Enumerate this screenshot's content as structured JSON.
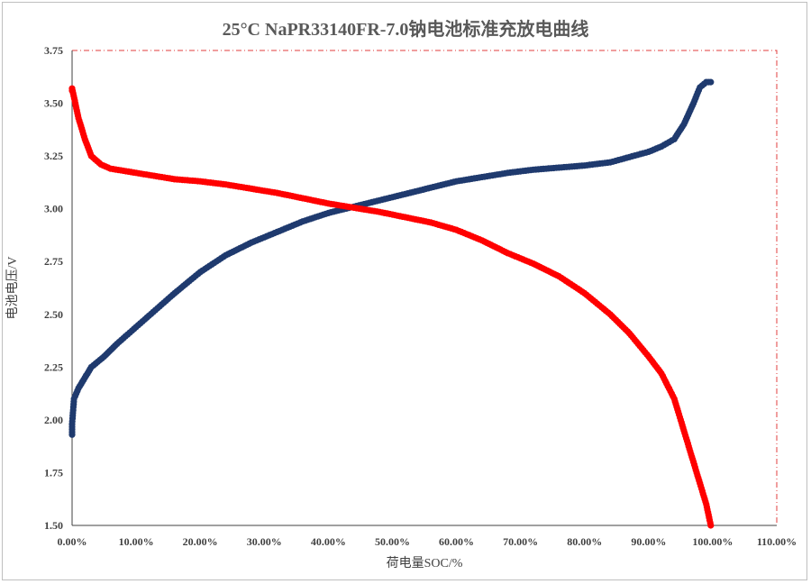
{
  "chart_data": {
    "type": "scatter",
    "title": "25°C NaPR33140FR-7.0钠电池标准充放电曲线",
    "xlabel": "荷电量SOC/%",
    "ylabel": "电池电压/V",
    "xlim": [
      0,
      1.1
    ],
    "ylim": [
      1.5,
      3.75
    ],
    "xticks": [
      0,
      0.1,
      0.2,
      0.3,
      0.4,
      0.5,
      0.6,
      0.7,
      0.8,
      0.9,
      1.0,
      1.1
    ],
    "xtick_labels": [
      "0.00%",
      "10.00%",
      "20.00%",
      "30.00%",
      "40.00%",
      "50.00%",
      "60.00%",
      "70.00%",
      "80.00%",
      "90.00%",
      "100.00%",
      "110.00%"
    ],
    "yticks": [
      1.5,
      1.75,
      2.0,
      2.25,
      2.5,
      2.75,
      3.0,
      3.25,
      3.5,
      3.75
    ],
    "ytick_labels": [
      "1.50",
      "1.75",
      "2.00",
      "2.25",
      "2.50",
      "2.75",
      "3.00",
      "3.25",
      "3.50",
      "3.75"
    ],
    "plot_border": "dash-dot",
    "series": [
      {
        "color": "#1f3a6e",
        "points": [
          [
            0.0,
            1.93
          ],
          [
            0.0,
            1.98
          ],
          [
            0.003,
            2.1
          ],
          [
            0.01,
            2.15
          ],
          [
            0.02,
            2.2
          ],
          [
            0.03,
            2.25
          ],
          [
            0.05,
            2.3
          ],
          [
            0.07,
            2.36
          ],
          [
            0.1,
            2.44
          ],
          [
            0.13,
            2.52
          ],
          [
            0.16,
            2.6
          ],
          [
            0.2,
            2.7
          ],
          [
            0.24,
            2.78
          ],
          [
            0.28,
            2.84
          ],
          [
            0.32,
            2.89
          ],
          [
            0.36,
            2.94
          ],
          [
            0.4,
            2.98
          ],
          [
            0.44,
            3.01
          ],
          [
            0.48,
            3.04
          ],
          [
            0.52,
            3.07
          ],
          [
            0.56,
            3.1
          ],
          [
            0.6,
            3.13
          ],
          [
            0.64,
            3.15
          ],
          [
            0.68,
            3.17
          ],
          [
            0.72,
            3.185
          ],
          [
            0.76,
            3.195
          ],
          [
            0.8,
            3.205
          ],
          [
            0.84,
            3.22
          ],
          [
            0.87,
            3.245
          ],
          [
            0.9,
            3.27
          ],
          [
            0.92,
            3.295
          ],
          [
            0.94,
            3.33
          ],
          [
            0.955,
            3.4
          ],
          [
            0.97,
            3.5
          ],
          [
            0.98,
            3.575
          ],
          [
            0.99,
            3.6
          ],
          [
            0.997,
            3.6
          ]
        ]
      },
      {
        "color": "#ff0000",
        "points": [
          [
            0.0,
            3.56
          ],
          [
            0.0,
            3.57
          ],
          [
            0.005,
            3.5
          ],
          [
            0.01,
            3.43
          ],
          [
            0.02,
            3.33
          ],
          [
            0.03,
            3.25
          ],
          [
            0.045,
            3.21
          ],
          [
            0.06,
            3.19
          ],
          [
            0.08,
            3.18
          ],
          [
            0.12,
            3.16
          ],
          [
            0.16,
            3.14
          ],
          [
            0.2,
            3.13
          ],
          [
            0.24,
            3.115
          ],
          [
            0.28,
            3.095
          ],
          [
            0.32,
            3.075
          ],
          [
            0.36,
            3.05
          ],
          [
            0.4,
            3.025
          ],
          [
            0.44,
            3.005
          ],
          [
            0.48,
            2.985
          ],
          [
            0.52,
            2.96
          ],
          [
            0.56,
            2.935
          ],
          [
            0.6,
            2.9
          ],
          [
            0.64,
            2.85
          ],
          [
            0.68,
            2.79
          ],
          [
            0.72,
            2.74
          ],
          [
            0.76,
            2.68
          ],
          [
            0.8,
            2.6
          ],
          [
            0.84,
            2.5
          ],
          [
            0.87,
            2.41
          ],
          [
            0.9,
            2.3
          ],
          [
            0.92,
            2.22
          ],
          [
            0.94,
            2.1
          ],
          [
            0.95,
            2.0
          ],
          [
            0.96,
            1.9
          ],
          [
            0.97,
            1.8
          ],
          [
            0.98,
            1.7
          ],
          [
            0.99,
            1.6
          ],
          [
            0.997,
            1.5
          ]
        ]
      }
    ]
  }
}
